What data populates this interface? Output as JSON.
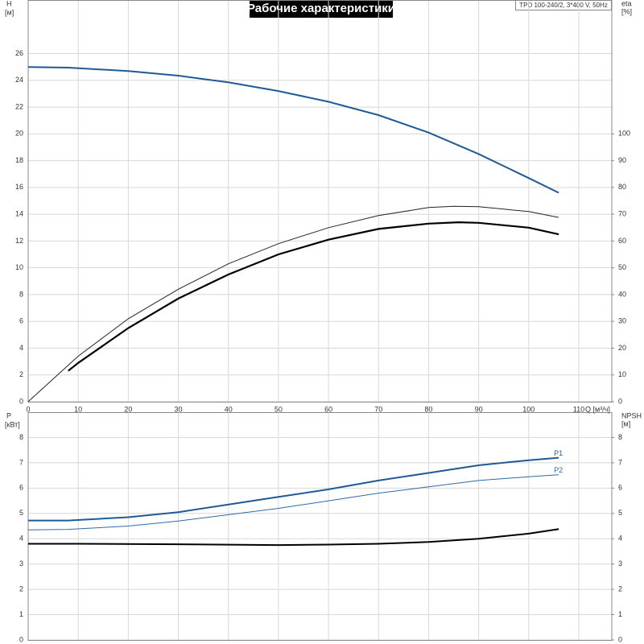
{
  "chart_data": [
    {
      "type": "line",
      "title": "Рабочие характеристики",
      "annotation": "TPD 100-240/2, 3*400 V, 50Hz",
      "ylabel": "H",
      "yunit": "[м]",
      "y2label": "eta",
      "y2unit": "[%]",
      "xlabel": "Q [м³/ч]",
      "xlim": [
        0,
        116.6
      ],
      "xticks": [
        0,
        10,
        20,
        30,
        40,
        50,
        60,
        70,
        80,
        90,
        100,
        110
      ],
      "ylim": [
        0,
        30
      ],
      "yticks": [
        0,
        2,
        4,
        6,
        8,
        10,
        12,
        14,
        16,
        18,
        20,
        22,
        24,
        26
      ],
      "y2lim": [
        0,
        150
      ],
      "y2ticks": [
        0,
        10,
        20,
        30,
        40,
        50,
        60,
        70,
        80,
        90,
        100
      ],
      "grid": true,
      "series": [
        {
          "color": "#1f5a96",
          "width": 2,
          "x": [
            0,
            8,
            10,
            20,
            30,
            40,
            50,
            60,
            70,
            80,
            90,
            100,
            106
          ],
          "values": [
            25,
            24.95,
            24.9,
            24.7,
            24.35,
            23.85,
            23.2,
            22.4,
            21.4,
            20.1,
            18.5,
            16.7,
            15.6
          ]
        },
        {
          "color": "#222222",
          "width": 1,
          "axis": "y2",
          "x": [
            0,
            10,
            20,
            30,
            40,
            50,
            60,
            70,
            80,
            85,
            90,
            100,
            106
          ],
          "values": [
            0,
            17,
            31,
            42,
            51.5,
            59,
            65,
            69.5,
            72.5,
            73,
            72.8,
            71,
            68.8
          ]
        },
        {
          "color": "#000000",
          "width": 2.2,
          "axis": "y2",
          "x": [
            8,
            10,
            20,
            30,
            40,
            50,
            60,
            70,
            80,
            86,
            90,
            100,
            106
          ],
          "values": [
            11.5,
            14.5,
            27.5,
            38.5,
            47.5,
            55,
            60.5,
            64.5,
            66.5,
            67,
            66.8,
            65,
            62.5
          ]
        }
      ]
    },
    {
      "type": "line",
      "ylabel": "P",
      "yunit": "[кВт]",
      "y2label": "NPSH",
      "y2unit": "[м]",
      "xlim": [
        0,
        116.6
      ],
      "xticks": [
        0,
        10,
        20,
        30,
        40,
        50,
        60,
        70,
        80,
        90,
        100,
        110
      ],
      "ylim": [
        0,
        9
      ],
      "yticks": [
        0,
        1,
        2,
        3,
        4,
        5,
        6,
        7,
        8
      ],
      "y2lim": [
        0,
        9
      ],
      "y2ticks": [
        0,
        1,
        2,
        3,
        4,
        5,
        6,
        7,
        8
      ],
      "grid": true,
      "series": [
        {
          "name": "P1",
          "color": "#1f5a96",
          "width": 2,
          "x": [
            0,
            8,
            20,
            30,
            40,
            50,
            60,
            70,
            80,
            90,
            100,
            106
          ],
          "values": [
            4.72,
            4.72,
            4.85,
            5.05,
            5.35,
            5.65,
            5.95,
            6.3,
            6.6,
            6.9,
            7.1,
            7.2
          ]
        },
        {
          "name": "P2",
          "color": "#2f6aa6",
          "width": 1,
          "x": [
            0,
            8,
            20,
            30,
            40,
            50,
            60,
            70,
            80,
            90,
            100,
            106
          ],
          "values": [
            4.35,
            4.37,
            4.5,
            4.7,
            4.95,
            5.2,
            5.5,
            5.8,
            6.05,
            6.3,
            6.45,
            6.53
          ]
        },
        {
          "color": "#000000",
          "width": 2,
          "axis": "y2",
          "x": [
            0,
            10,
            30,
            50,
            60,
            70,
            80,
            90,
            100,
            106
          ],
          "values": [
            3.8,
            3.8,
            3.78,
            3.75,
            3.77,
            3.8,
            3.87,
            4.0,
            4.2,
            4.38
          ]
        }
      ]
    }
  ]
}
